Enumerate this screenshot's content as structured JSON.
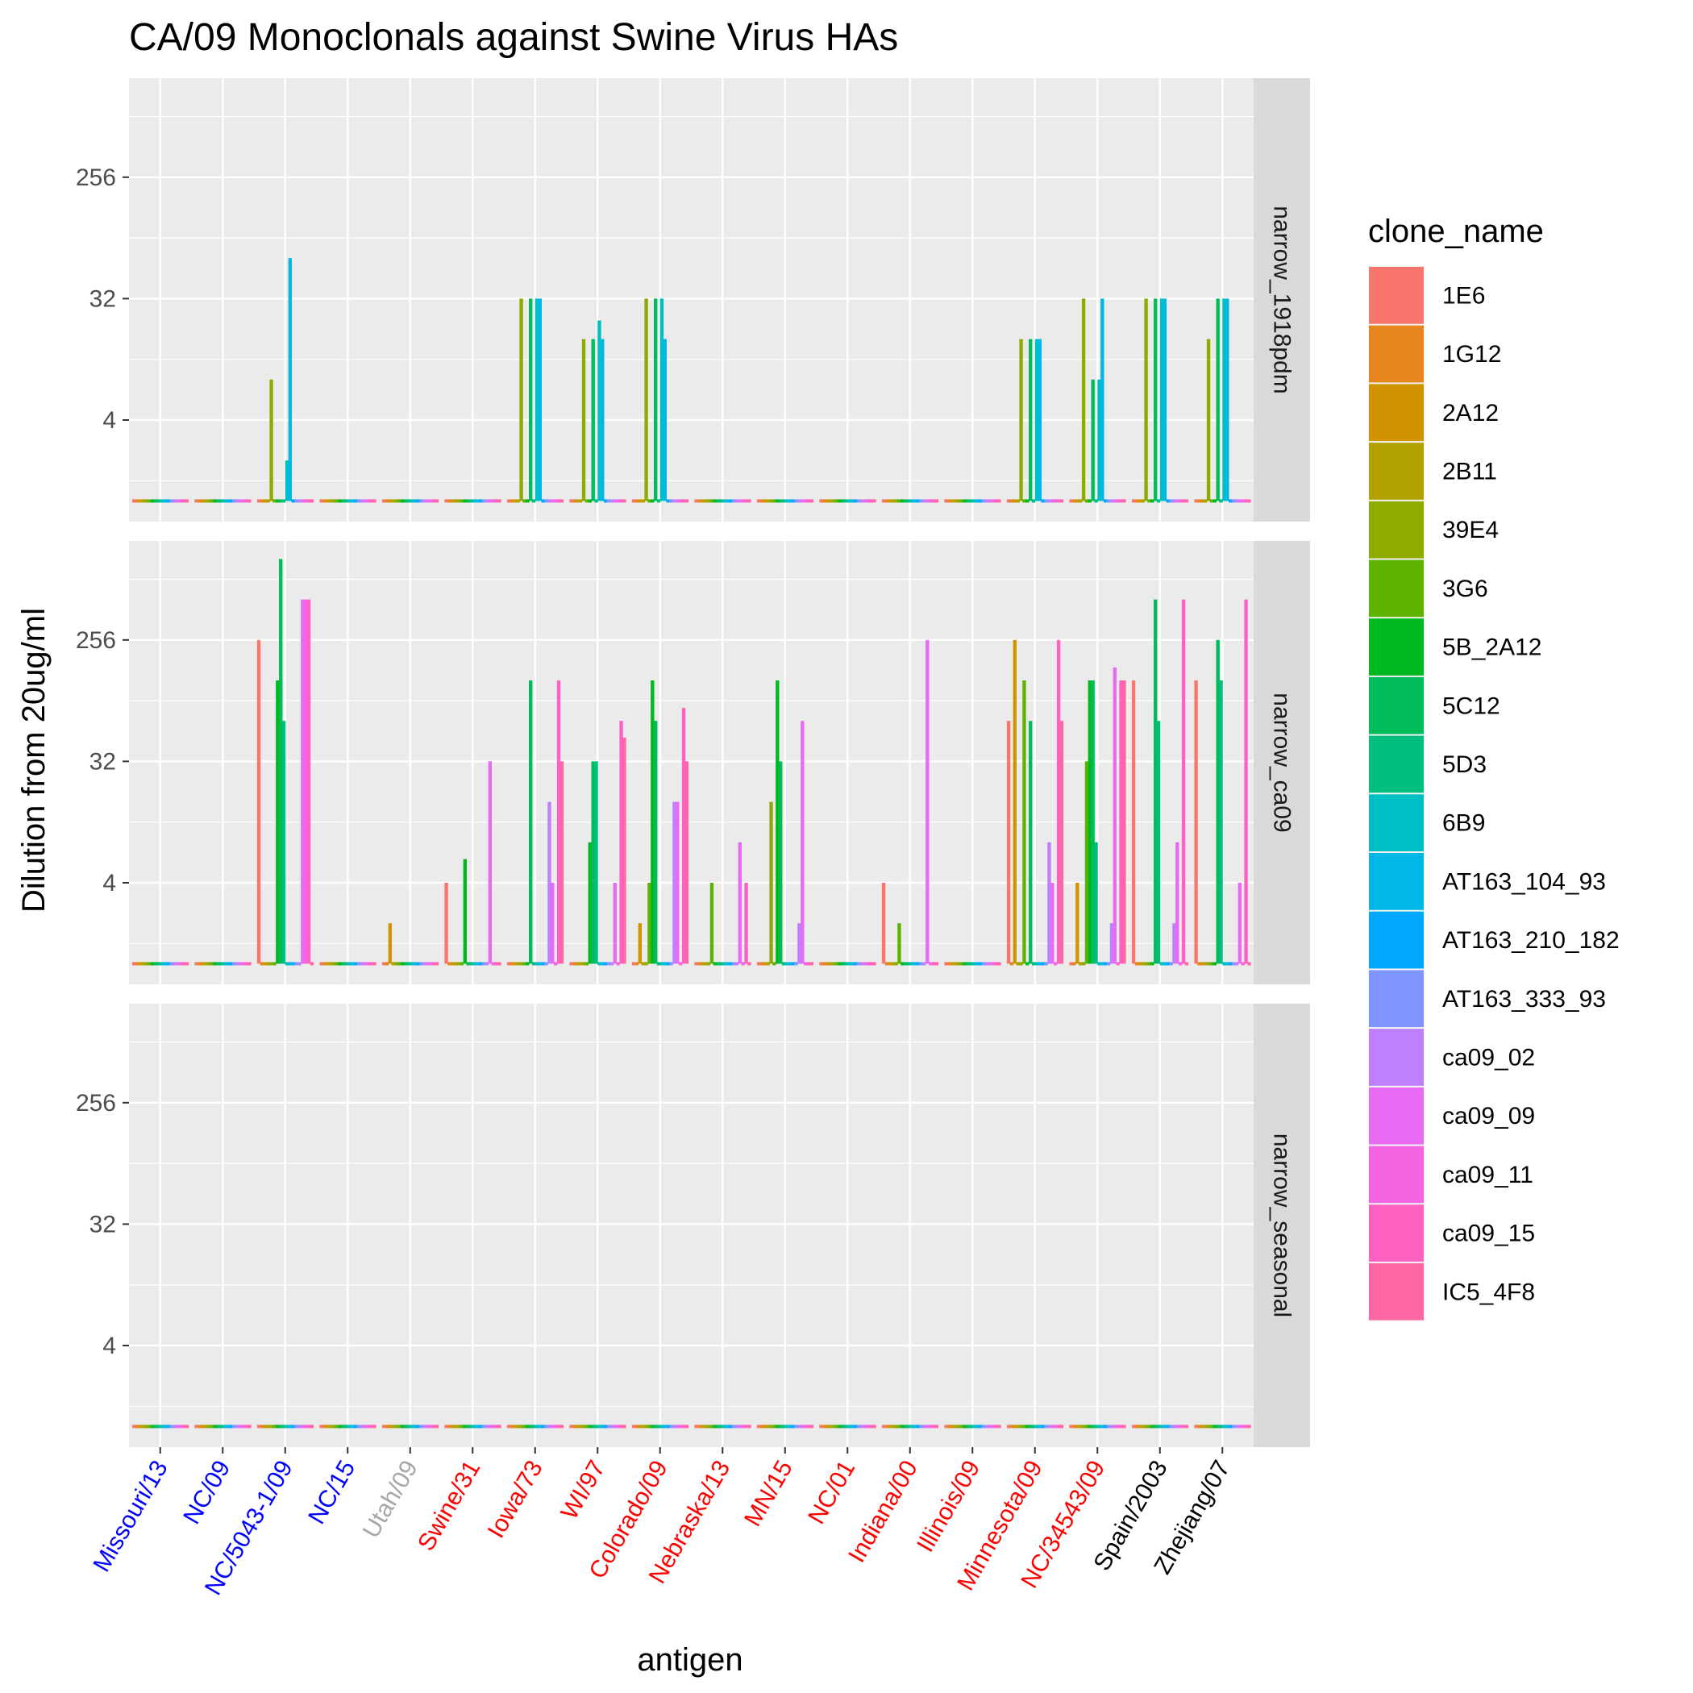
{
  "chart_data": {
    "type": "bar",
    "title": "CA/09 Monoclonals against Swine Virus HAs",
    "xlabel": "antigen",
    "ylabel": "Dilution from 20ug/ml",
    "y_scale": "log2",
    "y_ticks": [
      4,
      32,
      256
    ],
    "ylim": [
      0.5,
      2048
    ],
    "grid": true,
    "legend_position": "right",
    "legend_title": "clone_name",
    "categories": [
      "Missouri/13",
      "NC/09",
      "NC/5043-1/09",
      "NC/15",
      "Utah/09",
      "Swine/31",
      "Iowa/73",
      "WI/97",
      "Colorado/09",
      "Nebraska/13",
      "MN/15",
      "NC/01",
      "Indiana/00",
      "Illinois/09",
      "Minnesota/09",
      "NC/34543/09",
      "Spain/2003",
      "Zhejiang/07"
    ],
    "category_colors": [
      "#0000ff",
      "#0000ff",
      "#0000ff",
      "#0000ff",
      "#a6a6a6",
      "#ff0000",
      "#ff0000",
      "#ff0000",
      "#ff0000",
      "#ff0000",
      "#ff0000",
      "#ff0000",
      "#ff0000",
      "#ff0000",
      "#ff0000",
      "#ff0000",
      "#000000",
      "#000000"
    ],
    "series_names": [
      "1E6",
      "1G12",
      "2A12",
      "2B11",
      "39E4",
      "3G6",
      "5B_2A12",
      "5C12",
      "5D3",
      "6B9",
      "AT163_104_93",
      "AT163_210_182",
      "AT163_333_93",
      "ca09_02",
      "ca09_09",
      "ca09_11",
      "ca09_15",
      "IC5_4F8"
    ],
    "series_colors": [
      "#F8766D",
      "#E7851E",
      "#D09400",
      "#B2A100",
      "#8EAB00",
      "#5EB300",
      "#00B81F",
      "#00BC5A",
      "#00BF7D",
      "#00BFC4",
      "#00B7E5",
      "#00A9FF",
      "#7F96FF",
      "#BF80FF",
      "#E76BF3",
      "#F564E3",
      "#FF61C3",
      "#FF67A4"
    ],
    "baseline": 1,
    "panels": [
      {
        "facet": "narrow_1918pdm",
        "bars": [
          {
            "category": "NC/5043-1/09",
            "series": "39E4",
            "value": 8
          },
          {
            "category": "NC/5043-1/09",
            "series": "6B9",
            "value": 2
          },
          {
            "category": "NC/5043-1/09",
            "series": "AT163_104_93",
            "value": 64
          },
          {
            "category": "Iowa/73",
            "series": "39E4",
            "value": 32
          },
          {
            "category": "Iowa/73",
            "series": "5C12",
            "value": 32
          },
          {
            "category": "Iowa/73",
            "series": "6B9",
            "value": 32
          },
          {
            "category": "Iowa/73",
            "series": "AT163_104_93",
            "value": 32
          },
          {
            "category": "WI/97",
            "series": "39E4",
            "value": 16
          },
          {
            "category": "WI/97",
            "series": "5C12",
            "value": 16
          },
          {
            "category": "WI/97",
            "series": "6B9",
            "value": 22
          },
          {
            "category": "WI/97",
            "series": "AT163_104_93",
            "value": 16
          },
          {
            "category": "Colorado/09",
            "series": "39E4",
            "value": 32
          },
          {
            "category": "Colorado/09",
            "series": "5C12",
            "value": 32
          },
          {
            "category": "Colorado/09",
            "series": "6B9",
            "value": 32
          },
          {
            "category": "Colorado/09",
            "series": "AT163_104_93",
            "value": 16
          },
          {
            "category": "Minnesota/09",
            "series": "39E4",
            "value": 16
          },
          {
            "category": "Minnesota/09",
            "series": "5C12",
            "value": 16
          },
          {
            "category": "Minnesota/09",
            "series": "6B9",
            "value": 16
          },
          {
            "category": "Minnesota/09",
            "series": "AT163_104_93",
            "value": 16
          },
          {
            "category": "NC/34543/09",
            "series": "39E4",
            "value": 32
          },
          {
            "category": "NC/34543/09",
            "series": "5C12",
            "value": 8
          },
          {
            "category": "NC/34543/09",
            "series": "6B9",
            "value": 8
          },
          {
            "category": "NC/34543/09",
            "series": "AT163_104_93",
            "value": 32
          },
          {
            "category": "Spain/2003",
            "series": "39E4",
            "value": 32
          },
          {
            "category": "Spain/2003",
            "series": "5C12",
            "value": 32
          },
          {
            "category": "Spain/2003",
            "series": "6B9",
            "value": 32
          },
          {
            "category": "Spain/2003",
            "series": "AT163_104_93",
            "value": 32
          },
          {
            "category": "Zhejiang/07",
            "series": "39E4",
            "value": 16
          },
          {
            "category": "Zhejiang/07",
            "series": "5C12",
            "value": 32
          },
          {
            "category": "Zhejiang/07",
            "series": "6B9",
            "value": 32
          },
          {
            "category": "Zhejiang/07",
            "series": "AT163_104_93",
            "value": 32
          }
        ]
      },
      {
        "facet": "narrow_ca09",
        "bars": [
          {
            "category": "NC/5043-1/09",
            "series": "1E6",
            "value": 256
          },
          {
            "category": "NC/5043-1/09",
            "series": "5B_2A12",
            "value": 128
          },
          {
            "category": "NC/5043-1/09",
            "series": "5C12",
            "value": 1024
          },
          {
            "category": "NC/5043-1/09",
            "series": "5D3",
            "value": 64
          },
          {
            "category": "NC/5043-1/09",
            "series": "ca09_09",
            "value": 512
          },
          {
            "category": "NC/5043-1/09",
            "series": "ca09_11",
            "value": 512
          },
          {
            "category": "NC/5043-1/09",
            "series": "ca09_15",
            "value": 512
          },
          {
            "category": "Utah/09",
            "series": "2A12",
            "value": 2
          },
          {
            "category": "Swine/31",
            "series": "1E6",
            "value": 4
          },
          {
            "category": "Swine/31",
            "series": "5B_2A12",
            "value": 6
          },
          {
            "category": "Swine/31",
            "series": "ca09_09",
            "value": 32
          },
          {
            "category": "Iowa/73",
            "series": "5C12",
            "value": 128
          },
          {
            "category": "Iowa/73",
            "series": "ca09_02",
            "value": 16
          },
          {
            "category": "Iowa/73",
            "series": "ca09_09",
            "value": 4
          },
          {
            "category": "Iowa/73",
            "series": "ca09_15",
            "value": 128
          },
          {
            "category": "Iowa/73",
            "series": "IC5_4F8",
            "value": 32
          },
          {
            "category": "WI/97",
            "series": "5B_2A12",
            "value": 8
          },
          {
            "category": "WI/97",
            "series": "5C12",
            "value": 32
          },
          {
            "category": "WI/97",
            "series": "5D3",
            "value": 32
          },
          {
            "category": "WI/97",
            "series": "ca09_09",
            "value": 4
          },
          {
            "category": "WI/97",
            "series": "ca09_15",
            "value": 64
          },
          {
            "category": "WI/97",
            "series": "IC5_4F8",
            "value": 48
          },
          {
            "category": "Colorado/09",
            "series": "2A12",
            "value": 2
          },
          {
            "category": "Colorado/09",
            "series": "3G6",
            "value": 4
          },
          {
            "category": "Colorado/09",
            "series": "5B_2A12",
            "value": 128
          },
          {
            "category": "Colorado/09",
            "series": "5C12",
            "value": 64
          },
          {
            "category": "Colorado/09",
            "series": "ca09_02",
            "value": 16
          },
          {
            "category": "Colorado/09",
            "series": "ca09_09",
            "value": 16
          },
          {
            "category": "Colorado/09",
            "series": "ca09_15",
            "value": 80
          },
          {
            "category": "Colorado/09",
            "series": "IC5_4F8",
            "value": 32
          },
          {
            "category": "Nebraska/13",
            "series": "3G6",
            "value": 4
          },
          {
            "category": "Nebraska/13",
            "series": "ca09_09",
            "value": 8
          },
          {
            "category": "Nebraska/13",
            "series": "ca09_15",
            "value": 4
          },
          {
            "category": "MN/15",
            "series": "39E4",
            "value": 16
          },
          {
            "category": "MN/15",
            "series": "5B_2A12",
            "value": 128
          },
          {
            "category": "MN/15",
            "series": "5C12",
            "value": 32
          },
          {
            "category": "MN/15",
            "series": "ca09_02",
            "value": 2
          },
          {
            "category": "MN/15",
            "series": "ca09_09",
            "value": 64
          },
          {
            "category": "Indiana/00",
            "series": "1E6",
            "value": 4
          },
          {
            "category": "Indiana/00",
            "series": "3G6",
            "value": 2
          },
          {
            "category": "Indiana/00",
            "series": "ca09_09",
            "value": 256
          },
          {
            "category": "Minnesota/09",
            "series": "1E6",
            "value": 64
          },
          {
            "category": "Minnesota/09",
            "series": "2A12",
            "value": 256
          },
          {
            "category": "Minnesota/09",
            "series": "3G6",
            "value": 128
          },
          {
            "category": "Minnesota/09",
            "series": "5C12",
            "value": 64
          },
          {
            "category": "Minnesota/09",
            "series": "ca09_02",
            "value": 8
          },
          {
            "category": "Minnesota/09",
            "series": "ca09_09",
            "value": 4
          },
          {
            "category": "Minnesota/09",
            "series": "ca09_15",
            "value": 256
          },
          {
            "category": "Minnesota/09",
            "series": "IC5_4F8",
            "value": 64
          },
          {
            "category": "NC/34543/09",
            "series": "2A12",
            "value": 4
          },
          {
            "category": "NC/34543/09",
            "series": "3G6",
            "value": 32
          },
          {
            "category": "NC/34543/09",
            "series": "5B_2A12",
            "value": 128
          },
          {
            "category": "NC/34543/09",
            "series": "5C12",
            "value": 128
          },
          {
            "category": "NC/34543/09",
            "series": "5D3",
            "value": 8
          },
          {
            "category": "NC/34543/09",
            "series": "ca09_02",
            "value": 2
          },
          {
            "category": "NC/34543/09",
            "series": "ca09_09",
            "value": 160
          },
          {
            "category": "NC/34543/09",
            "series": "ca09_15",
            "value": 128
          },
          {
            "category": "NC/34543/09",
            "series": "IC5_4F8",
            "value": 128
          },
          {
            "category": "Spain/2003",
            "series": "1E6",
            "value": 128
          },
          {
            "category": "Spain/2003",
            "series": "5C12",
            "value": 512
          },
          {
            "category": "Spain/2003",
            "series": "5D3",
            "value": 64
          },
          {
            "category": "Spain/2003",
            "series": "ca09_02",
            "value": 2
          },
          {
            "category": "Spain/2003",
            "series": "ca09_09",
            "value": 8
          },
          {
            "category": "Spain/2003",
            "series": "ca09_15",
            "value": 512
          },
          {
            "category": "Zhejiang/07",
            "series": "1E6",
            "value": 128
          },
          {
            "category": "Zhejiang/07",
            "series": "5C12",
            "value": 256
          },
          {
            "category": "Zhejiang/07",
            "series": "5D3",
            "value": 128
          },
          {
            "category": "Zhejiang/07",
            "series": "ca09_09",
            "value": 4
          },
          {
            "category": "Zhejiang/07",
            "series": "ca09_15",
            "value": 512
          }
        ]
      },
      {
        "facet": "narrow_seasonal",
        "bars": []
      }
    ]
  }
}
